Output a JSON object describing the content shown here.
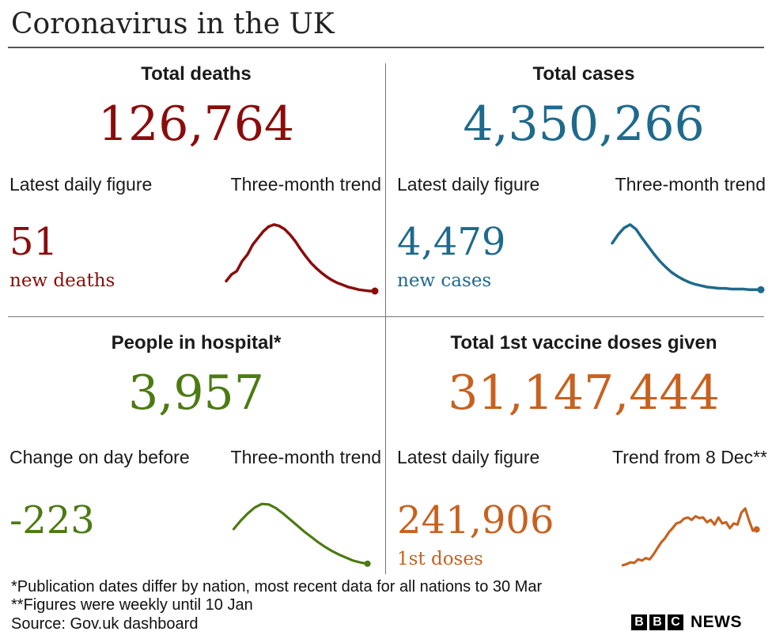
{
  "title": "Coronavirus in the UK",
  "colors": {
    "deaths": "#8b0c0c",
    "cases": "#1e6a8c",
    "hospital": "#4d7a12",
    "vaccine": "#c9611e"
  },
  "panels": {
    "deaths": {
      "title": "Total deaths",
      "total": "126,764",
      "left_label": "Latest daily figure",
      "right_label": "Three-month trend",
      "daily_value": "51",
      "daily_unit": "new deaths"
    },
    "cases": {
      "title": "Total cases",
      "total": "4,350,266",
      "left_label": "Latest daily figure",
      "right_label": "Three-month trend",
      "daily_value": "4,479",
      "daily_unit": "new cases"
    },
    "hospital": {
      "title": "People in hospital*",
      "total": "3,957",
      "left_label": "Change on day before",
      "right_label": "Three-month trend",
      "daily_value": "-223",
      "daily_unit": ""
    },
    "vaccine": {
      "title": "Total 1st vaccine doses given",
      "total": "31,147,444",
      "left_label": "Latest daily figure",
      "right_label": "Trend from 8 Dec**",
      "daily_value": "241,906",
      "daily_unit": "1st doses"
    }
  },
  "chart_data": [
    {
      "type": "line",
      "series": [
        {
          "values": [
            0.15,
            0.25,
            0.3,
            0.45,
            0.55,
            0.7,
            0.8,
            0.9,
            0.97,
            1.0,
            0.98,
            0.93,
            0.85,
            0.75,
            0.63,
            0.52,
            0.42,
            0.34,
            0.27,
            0.21,
            0.16,
            0.12,
            0.09,
            0.06,
            0.04,
            0.02,
            0.01,
            0.0,
            0.0
          ]
        }
      ]
    },
    {
      "type": "line",
      "series": [
        {
          "values": [
            0.72,
            0.85,
            0.95,
            1.0,
            0.93,
            0.8,
            0.68,
            0.56,
            0.45,
            0.36,
            0.28,
            0.22,
            0.17,
            0.13,
            0.1,
            0.08,
            0.06,
            0.05,
            0.04,
            0.04,
            0.03,
            0.03,
            0.03,
            0.02,
            0.02,
            0.02
          ]
        }
      ]
    },
    {
      "type": "line",
      "series": [
        {
          "values": [
            0.58,
            0.72,
            0.84,
            0.94,
            1.0,
            0.99,
            0.93,
            0.84,
            0.74,
            0.64,
            0.54,
            0.45,
            0.36,
            0.28,
            0.21,
            0.15,
            0.1,
            0.05,
            0.02,
            0.0
          ]
        }
      ]
    },
    {
      "type": "line",
      "series": [
        {
          "values": [
            0.0,
            0.02,
            0.05,
            0.04,
            0.1,
            0.08,
            0.12,
            0.1,
            0.18,
            0.28,
            0.38,
            0.45,
            0.55,
            0.62,
            0.7,
            0.72,
            0.78,
            0.8,
            0.76,
            0.82,
            0.79,
            0.8,
            0.72,
            0.76,
            0.68,
            0.8,
            0.7,
            0.72,
            0.62,
            0.7,
            0.68,
            0.88,
            0.95,
            0.75,
            0.58,
            0.6
          ]
        }
      ]
    }
  ],
  "footer": {
    "note1": "*Publication dates differ by nation, most recent data for all nations to 30 Mar",
    "note2": "**Figures were weekly until 10 Jan",
    "source": "Source: Gov.uk dashboard"
  },
  "logo": {
    "letters": [
      "B",
      "B",
      "C"
    ],
    "news": "NEWS"
  }
}
